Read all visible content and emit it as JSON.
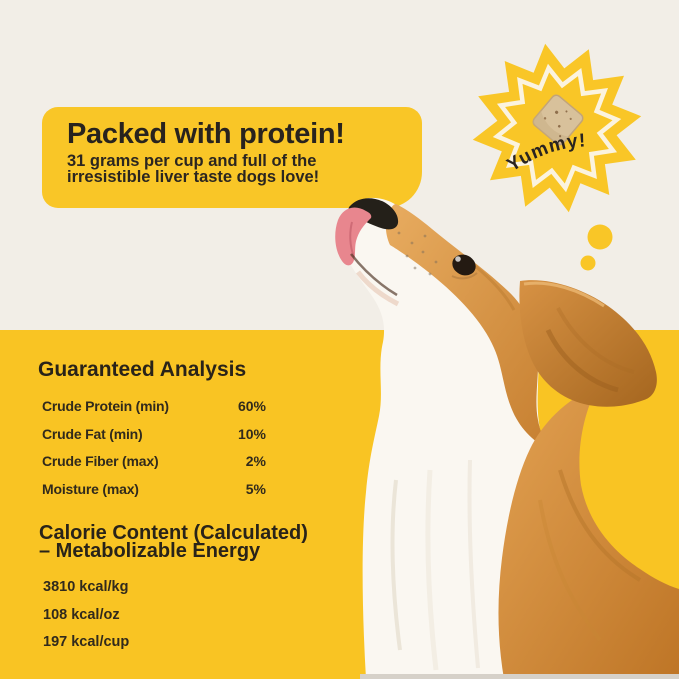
{
  "colors": {
    "background_cream": "#F2EEE7",
    "background_yellow": "#F9C423",
    "text_dark": "#2B2620",
    "badge_ring_cream": "#FBF3DF",
    "fur_orange": "#D28C41",
    "fur_white": "#FAF7F1",
    "treat_tan": "#D8C19B"
  },
  "hero": {
    "headline": "Packed with protein!",
    "subline_1": "31 grams per cup and full of the",
    "subline_2": "irresistible liver taste dogs love!"
  },
  "badge": {
    "label": "Yummy!"
  },
  "analysis": {
    "title": "Guaranteed Analysis",
    "rows": [
      {
        "label": "Crude Protein (min)",
        "value": "60%"
      },
      {
        "label": "Crude Fat (min)",
        "value": "10%"
      },
      {
        "label": "Crude Fiber (max)",
        "value": "2%"
      },
      {
        "label": "Moisture (max)",
        "value": "5%"
      }
    ]
  },
  "calories": {
    "title_line_1": "Calorie Content (Calculated)",
    "title_line_2": "– Metabolizable Energy",
    "rows": [
      {
        "value": "3810 kcal/kg"
      },
      {
        "value": "108 kcal/oz"
      },
      {
        "value": "197 kcal/cup"
      }
    ]
  }
}
